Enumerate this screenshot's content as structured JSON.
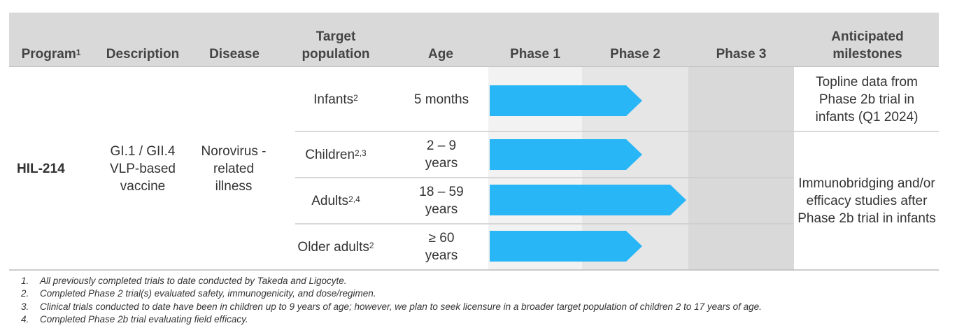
{
  "header": {
    "program": {
      "text": "Program",
      "sup": "1"
    },
    "description": "Description",
    "disease": "Disease",
    "target_population": "Target population",
    "age": "Age",
    "phase1": "Phase 1",
    "phase2": "Phase 2",
    "phase3": "Phase 3",
    "milestones": "Anticipated milestones"
  },
  "program": "HIL-214",
  "description": "GI.1 / GII.4 VLP-based vaccine",
  "disease": "Norovirus -related illness",
  "populations": [
    {
      "label": "Infants",
      "sup": "2",
      "age": "5 months"
    },
    {
      "label": "Children",
      "sup": "2,3",
      "age": "2 – 9 years"
    },
    {
      "label": "Adults",
      "sup": "2,4",
      "age": "18 – 59 years"
    },
    {
      "label": "Older adults",
      "sup": "2",
      "age": "≥ 60 years"
    }
  ],
  "milestones": [
    "Topline data from Phase 2b trial in infants (Q1 2024)",
    "Immunobridging and/or efficacy studies after Phase 2b trial in infants"
  ],
  "footnotes": [
    {
      "number": "1.",
      "text": "All previously completed trials to date conducted by Takeda and Ligocyte."
    },
    {
      "number": "2.",
      "text": "Completed Phase 2 trial(s) evaluated safety, immunogenicity, and dose/regimen."
    },
    {
      "number": "3.",
      "text": "Clinical trials conducted to date have been in children up to 9 years of age; however, we plan to seek licensure in a broader target population of children 2 to 17 years of age."
    },
    {
      "number": "4.",
      "text": "Completed Phase 2b trial evaluating field efficacy."
    }
  ]
}
